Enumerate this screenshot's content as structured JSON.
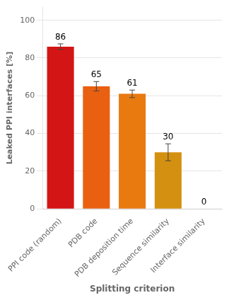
{
  "chart_data": {
    "type": "bar",
    "categories": [
      "PPI code (random)",
      "PDB code",
      "PDB deposition time",
      "Sequence similarity",
      "Interface similarity"
    ],
    "values": [
      86,
      65,
      61,
      30,
      0
    ],
    "errors": [
      1.5,
      2.5,
      2.0,
      4.5,
      0
    ],
    "colors": [
      "#d41515",
      "#e86010",
      "#e87a10",
      "#d49010",
      "#c8a020"
    ],
    "data_labels": true,
    "ylabel": "Leaked PPI interfaces [%]",
    "xlabel": "Splitting criterion",
    "ylim": [
      0,
      107
    ],
    "yticks": [
      0,
      20,
      40,
      60,
      80,
      100
    ],
    "grid": true
  }
}
